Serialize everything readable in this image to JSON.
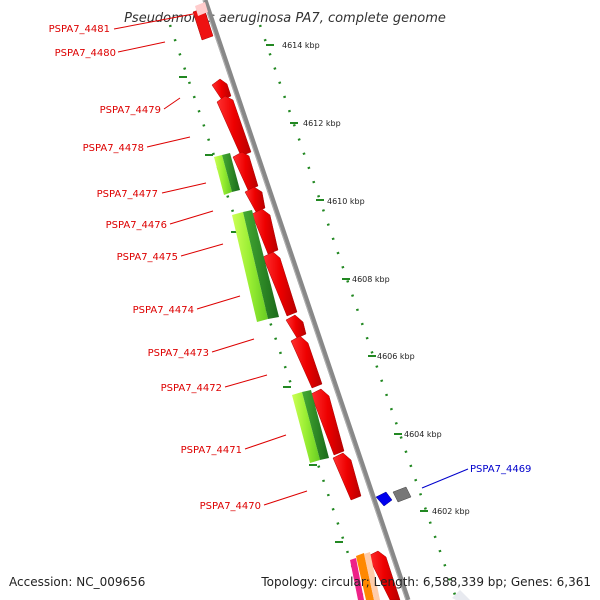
{
  "title": "Pseudomonas aeruginosa PA7, complete genome",
  "accession": "Accession: NC_009656",
  "topology": "Topology: circular; Length: 6,588,339 bp; Genes: 6,361",
  "ticks": [
    "4614 kbp",
    "4612 kbp",
    "4610 kbp",
    "4608 kbp",
    "4606 kbp",
    "4604 kbp",
    "4602 kbp"
  ],
  "genes": [
    {
      "label": "PSPA7_4481",
      "color": "#dd0000"
    },
    {
      "label": "PSPA7_4480",
      "color": "#dd0000"
    },
    {
      "label": "PSPA7_4479",
      "color": "#dd0000"
    },
    {
      "label": "PSPA7_4478",
      "color": "#dd0000"
    },
    {
      "label": "PSPA7_4477",
      "color": "#dd0000"
    },
    {
      "label": "PSPA7_4476",
      "color": "#dd0000"
    },
    {
      "label": "PSPA7_4475",
      "color": "#dd0000"
    },
    {
      "label": "PSPA7_4474",
      "color": "#dd0000"
    },
    {
      "label": "PSPA7_4473",
      "color": "#dd0000"
    },
    {
      "label": "PSPA7_4472",
      "color": "#dd0000"
    },
    {
      "label": "PSPA7_4471",
      "color": "#dd0000"
    },
    {
      "label": "PSPA7_4470",
      "color": "#dd0000"
    },
    {
      "label": "PSPA7_4469",
      "color": "#0000cc"
    }
  ],
  "colors": {
    "forward_gene": "#ee0000",
    "homolog_light": "#99ee33",
    "homolog_dark": "#228822",
    "backbone": "#888888",
    "gc_track": "#228822",
    "blue_gene": "#0000ee",
    "grey_gene": "#777777"
  }
}
